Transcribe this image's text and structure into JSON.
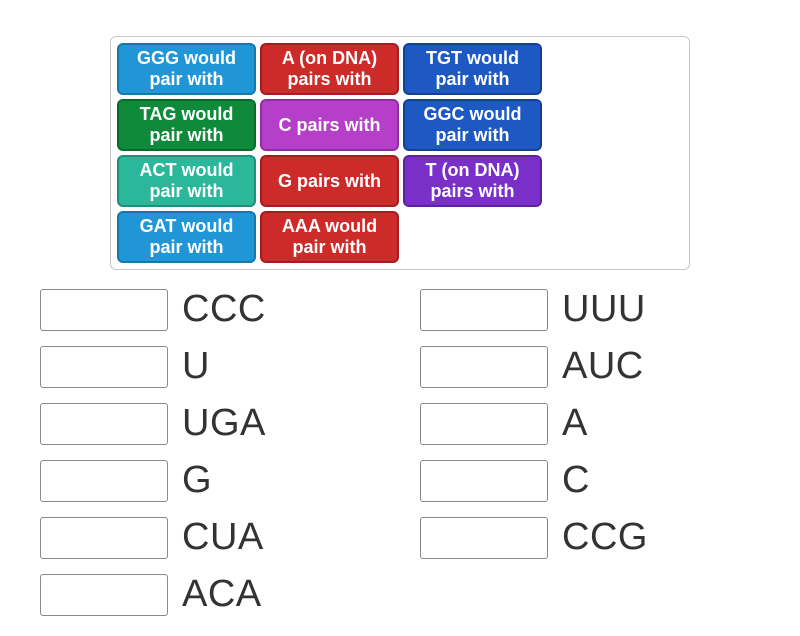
{
  "tile_tray": {
    "border_color": "#c9c9c9",
    "tiles": [
      {
        "id": "tile-ggg",
        "label": "GGG would pair with",
        "bg": "#2196d6",
        "border": "#1678ad"
      },
      {
        "id": "tile-a-dna",
        "label": "A (on DNA) pairs with",
        "bg": "#cd2a2a",
        "border": "#a31f1f"
      },
      {
        "id": "tile-tgt",
        "label": "TGT would pair with",
        "bg": "#1e58c2",
        "border": "#144193"
      },
      {
        "id": "tile-tag",
        "label": "TAG would pair with",
        "bg": "#0f8a3a",
        "border": "#0a6a2c"
      },
      {
        "id": "tile-c",
        "label": "C pairs with",
        "bg": "#b63fc9",
        "border": "#8f2fa0"
      },
      {
        "id": "tile-ggc",
        "label": "GGC would pair with",
        "bg": "#1e58c2",
        "border": "#144193"
      },
      {
        "id": "tile-act",
        "label": "ACT would pair with",
        "bg": "#2bb89a",
        "border": "#1f8f78"
      },
      {
        "id": "tile-g",
        "label": "G pairs with",
        "bg": "#cd2a2a",
        "border": "#a31f1f"
      },
      {
        "id": "tile-t-dna",
        "label": "T (on DNA) pairs with",
        "bg": "#7a2fc9",
        "border": "#5e22a0"
      },
      {
        "id": "tile-gat",
        "label": "GAT would pair with",
        "bg": "#2196d6",
        "border": "#1678ad"
      },
      {
        "id": "tile-aaa",
        "label": "AAA would pair with",
        "bg": "#cd2a2a",
        "border": "#a31f1f"
      }
    ]
  },
  "answers": [
    {
      "id": "slot-ccc",
      "label": "CCC"
    },
    {
      "id": "slot-u",
      "label": "U"
    },
    {
      "id": "slot-uga",
      "label": "UGA"
    },
    {
      "id": "slot-g",
      "label": "G"
    },
    {
      "id": "slot-cua",
      "label": "CUA"
    },
    {
      "id": "slot-aca",
      "label": "ACA"
    },
    {
      "id": "slot-uuu",
      "label": "UUU"
    },
    {
      "id": "slot-auc",
      "label": "AUC"
    },
    {
      "id": "slot-a",
      "label": "A"
    },
    {
      "id": "slot-c",
      "label": "C"
    },
    {
      "id": "slot-ccg",
      "label": "CCG"
    }
  ],
  "style": {
    "tile_font_size": 18,
    "tile_font_weight": 700,
    "tile_text_color": "#ffffff",
    "answer_font_size": 38,
    "answer_text_color": "#333333",
    "slot_border_color": "#8a8a8a",
    "slot_bg": "#ffffff",
    "page_bg": "#ffffff"
  }
}
